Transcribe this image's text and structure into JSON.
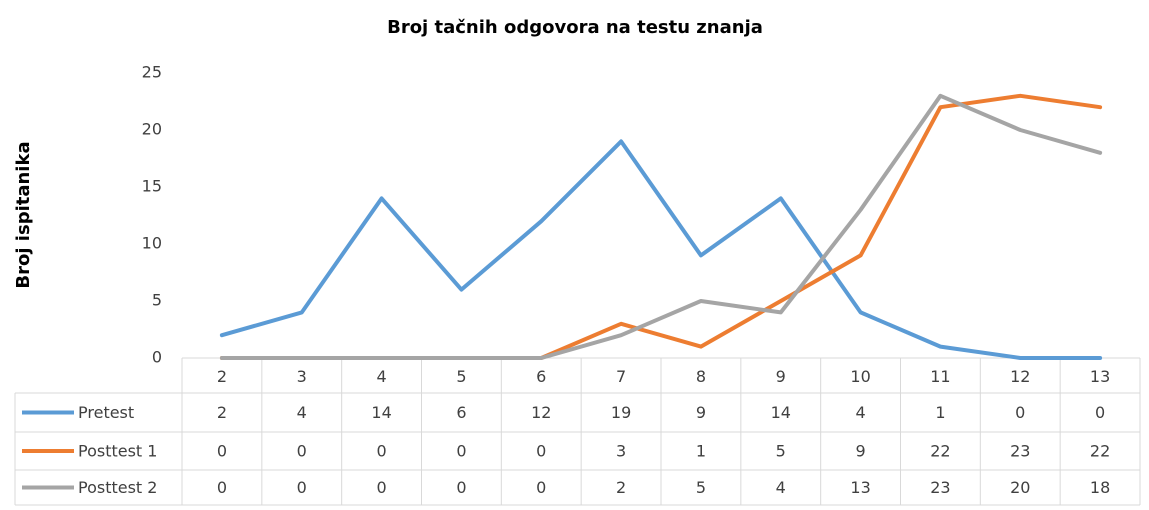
{
  "chart_data": {
    "type": "line",
    "title": "Broj tačnih odgovora na testu znanja",
    "y_label": "Broj ispitanika",
    "categories": [
      "2",
      "3",
      "4",
      "5",
      "6",
      "7",
      "8",
      "9",
      "10",
      "11",
      "12",
      "13"
    ],
    "series": [
      {
        "name": "Pretest",
        "color": "#5b9bd5",
        "values": [
          2,
          4,
          14,
          6,
          12,
          19,
          9,
          14,
          4,
          1,
          0,
          0
        ]
      },
      {
        "name": "Posttest 1",
        "color": "#ed7d31",
        "values": [
          0,
          0,
          0,
          0,
          0,
          3,
          1,
          5,
          9,
          22,
          23,
          22
        ]
      },
      {
        "name": "Posttest 2",
        "color": "#a5a5a5",
        "values": [
          0,
          0,
          0,
          0,
          0,
          2,
          5,
          4,
          13,
          23,
          20,
          18
        ]
      }
    ],
    "ylim": [
      0,
      25
    ],
    "yticks": [
      0,
      5,
      10,
      15,
      20,
      25
    ],
    "grid": false,
    "data_table": true
  }
}
